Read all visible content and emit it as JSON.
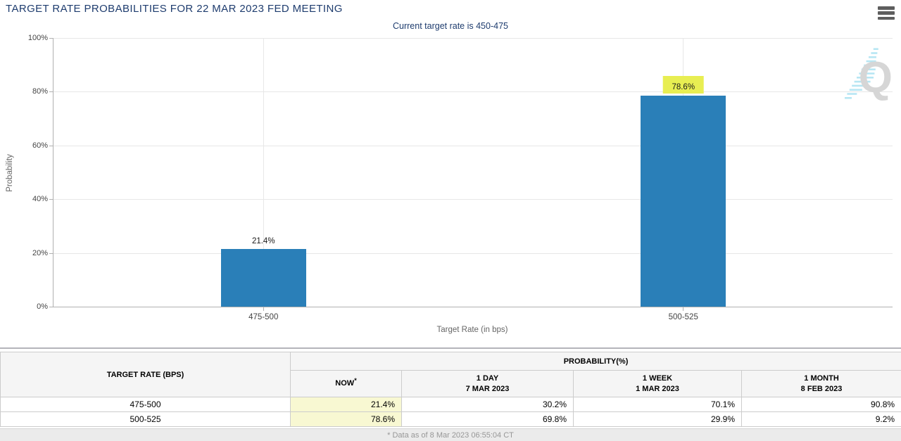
{
  "header": {
    "title": "TARGET RATE PROBABILITIES FOR 22 MAR 2023 FED MEETING",
    "subtitle": "Current target rate is 450-475"
  },
  "chart_data": {
    "type": "bar",
    "categories": [
      "475-500",
      "500-525"
    ],
    "values": [
      21.4,
      78.6
    ],
    "data_labels": [
      "21.4%",
      "78.6%"
    ],
    "highlighted_label_index": 1,
    "xlabel": "Target Rate (in bps)",
    "ylabel": "Probability",
    "ylim": [
      0,
      100
    ],
    "ytick_labels": [
      "0%",
      "20%",
      "40%",
      "60%",
      "80%",
      "100%"
    ],
    "grid": true,
    "legend": "none",
    "bar_color": "#2a7fb8",
    "highlight_color": "#e8ee52"
  },
  "watermark": {
    "letter": "Q"
  },
  "table": {
    "col1_header": "TARGET RATE (BPS)",
    "group_header": "PROBABILITY(%)",
    "now_label": "NOW",
    "now_asterisk": "*",
    "sub_headers": [
      {
        "line1": "1 DAY",
        "line2": "7 MAR 2023"
      },
      {
        "line1": "1 WEEK",
        "line2": "1 MAR 2023"
      },
      {
        "line1": "1 MONTH",
        "line2": "8 FEB 2023"
      }
    ],
    "rows": [
      {
        "rate": "475-500",
        "now": "21.4%",
        "day": "30.2%",
        "week": "70.1%",
        "month": "90.8%"
      },
      {
        "rate": "500-525",
        "now": "78.6%",
        "day": "69.8%",
        "week": "29.9%",
        "month": "9.2%"
      }
    ]
  },
  "footer": {
    "note": "* Data as of 8 Mar 2023 06:55:04 CT"
  }
}
